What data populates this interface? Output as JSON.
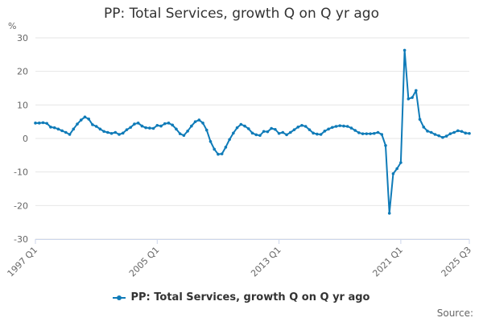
{
  "chart_data": {
    "type": "line",
    "title": "PP: Total Services, growth Q on Q yr ago",
    "ylabel": "%",
    "xlabel": "",
    "ylim": [
      -30,
      30
    ],
    "yticks": [
      30,
      20,
      10,
      0,
      -10,
      -20,
      -30
    ],
    "x_tick_labels": [
      "1997 Q1",
      "2005 Q1",
      "2013 Q1",
      "2021 Q1",
      "2025 Q3"
    ],
    "grid": true,
    "legend_position": "bottom",
    "color": "#0f7bb8",
    "series": [
      {
        "name": "PP: Total Services, growth Q on Q yr ago",
        "x": [
          "1997 Q1",
          "1997 Q2",
          "1997 Q3",
          "1997 Q4",
          "1998 Q1",
          "1998 Q2",
          "1998 Q3",
          "1998 Q4",
          "1999 Q1",
          "1999 Q2",
          "1999 Q3",
          "1999 Q4",
          "2000 Q1",
          "2000 Q2",
          "2000 Q3",
          "2000 Q4",
          "2001 Q1",
          "2001 Q2",
          "2001 Q3",
          "2001 Q4",
          "2002 Q1",
          "2002 Q2",
          "2002 Q3",
          "2002 Q4",
          "2003 Q1",
          "2003 Q2",
          "2003 Q3",
          "2003 Q4",
          "2004 Q1",
          "2004 Q2",
          "2004 Q3",
          "2004 Q4",
          "2005 Q1",
          "2005 Q2",
          "2005 Q3",
          "2005 Q4",
          "2006 Q1",
          "2006 Q2",
          "2006 Q3",
          "2006 Q4",
          "2007 Q1",
          "2007 Q2",
          "2007 Q3",
          "2007 Q4",
          "2008 Q1",
          "2008 Q2",
          "2008 Q3",
          "2008 Q4",
          "2009 Q1",
          "2009 Q2",
          "2009 Q3",
          "2009 Q4",
          "2010 Q1",
          "2010 Q2",
          "2010 Q3",
          "2010 Q4",
          "2011 Q1",
          "2011 Q2",
          "2011 Q3",
          "2011 Q4",
          "2012 Q1",
          "2012 Q2",
          "2012 Q3",
          "2012 Q4",
          "2013 Q1",
          "2013 Q2",
          "2013 Q3",
          "2013 Q4",
          "2014 Q1",
          "2014 Q2",
          "2014 Q3",
          "2014 Q4",
          "2015 Q1",
          "2015 Q2",
          "2015 Q3",
          "2015 Q4",
          "2016 Q1",
          "2016 Q2",
          "2016 Q3",
          "2016 Q4",
          "2017 Q1",
          "2017 Q2",
          "2017 Q3",
          "2017 Q4",
          "2018 Q1",
          "2018 Q2",
          "2018 Q3",
          "2018 Q4",
          "2019 Q1",
          "2019 Q2",
          "2019 Q3",
          "2019 Q4",
          "2020 Q1",
          "2020 Q2",
          "2020 Q3",
          "2020 Q4",
          "2021 Q1",
          "2021 Q2",
          "2021 Q3",
          "2021 Q4",
          "2022 Q1",
          "2022 Q2",
          "2022 Q3",
          "2022 Q4",
          "2023 Q1",
          "2023 Q2",
          "2023 Q3",
          "2023 Q4",
          "2024 Q1",
          "2024 Q2",
          "2024 Q3",
          "2024 Q4",
          "2025 Q1",
          "2025 Q2",
          "2025 Q3"
        ],
        "values": [
          4.6,
          4.6,
          4.7,
          4.5,
          3.4,
          3.2,
          2.8,
          2.3,
          1.8,
          1.2,
          2.8,
          4.3,
          5.5,
          6.4,
          5.8,
          4.1,
          3.6,
          2.8,
          2.1,
          1.8,
          1.5,
          1.8,
          1.2,
          1.6,
          2.6,
          3.3,
          4.3,
          4.6,
          3.7,
          3.2,
          3.1,
          3.0,
          3.9,
          3.7,
          4.4,
          4.6,
          4.0,
          2.8,
          1.4,
          0.9,
          2.2,
          3.7,
          5.0,
          5.5,
          4.6,
          2.5,
          -0.9,
          -3.2,
          -4.7,
          -4.6,
          -2.6,
          -0.3,
          1.6,
          3.2,
          4.2,
          3.7,
          2.9,
          1.6,
          1.1,
          0.9,
          2.1,
          2.0,
          3.0,
          2.7,
          1.5,
          1.8,
          1.1,
          1.8,
          2.6,
          3.4,
          3.9,
          3.6,
          2.6,
          1.6,
          1.3,
          1.2,
          2.2,
          2.8,
          3.3,
          3.6,
          3.8,
          3.7,
          3.6,
          3.1,
          2.4,
          1.7,
          1.4,
          1.4,
          1.4,
          1.5,
          1.8,
          1.2,
          -2.1,
          -22.3,
          -10.5,
          -9.0,
          -7.2,
          26.3,
          11.8,
          12.2,
          14.3,
          5.7,
          3.4,
          2.2,
          1.8,
          1.2,
          0.8,
          0.3,
          0.7,
          1.4,
          1.8,
          2.3,
          2.1,
          1.6,
          1.5
        ]
      }
    ]
  },
  "legend": {
    "label": "PP: Total Services, growth Q on Q yr ago"
  },
  "footer": {
    "source_label": "Source:"
  }
}
